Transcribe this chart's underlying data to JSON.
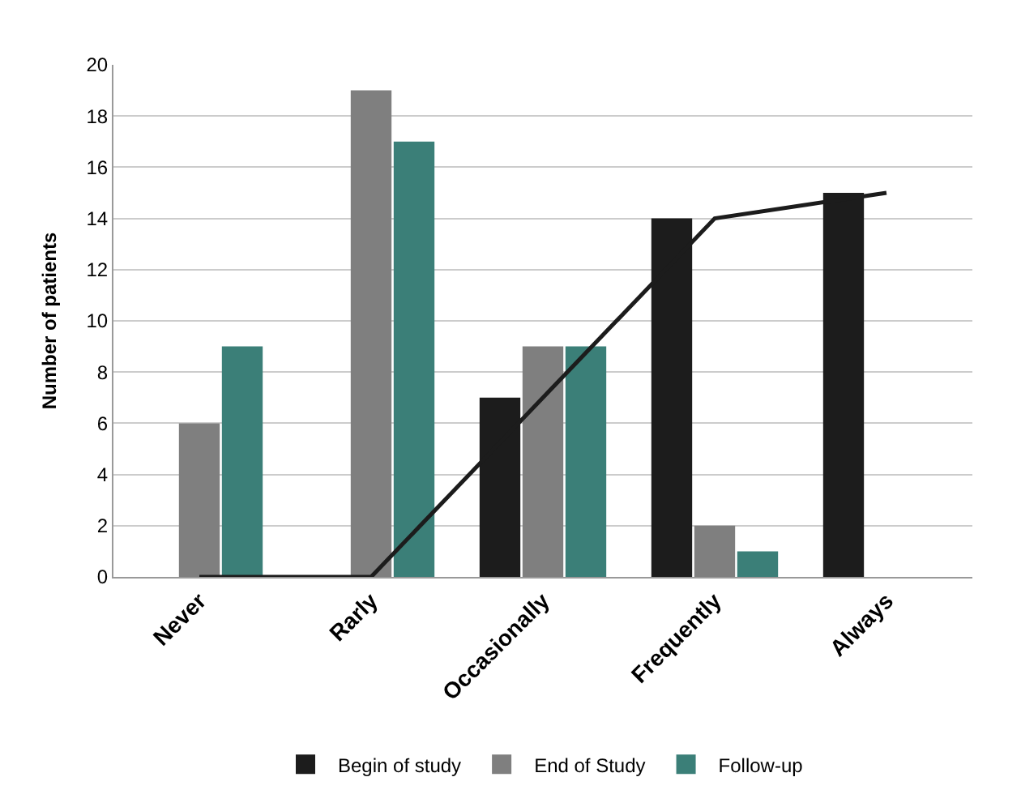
{
  "chart_data": {
    "type": "bar",
    "ylabel": "Number of patients",
    "categories": [
      "Never",
      "Rarly",
      "Occasionally",
      "Frequently",
      "Always"
    ],
    "series": [
      {
        "name": "Begin of study",
        "color": "#1c1c1c",
        "values": [
          0,
          0,
          7,
          14,
          15
        ]
      },
      {
        "name": "End of Study",
        "color": "#7f7f7f",
        "values": [
          6,
          19,
          9,
          2,
          0
        ]
      },
      {
        "name": "Follow-up",
        "color": "#3b7f78",
        "values": [
          9,
          17,
          9,
          1,
          0
        ]
      },
      {
        "type": "line",
        "color": "#1c1c1c",
        "values": [
          0,
          0,
          7,
          14,
          15
        ]
      }
    ],
    "ylim": [
      0,
      20
    ],
    "yticks": [
      0,
      2,
      4,
      6,
      8,
      10,
      12,
      14,
      16,
      18,
      20
    ],
    "grid": "y",
    "legend": "bottom"
  }
}
